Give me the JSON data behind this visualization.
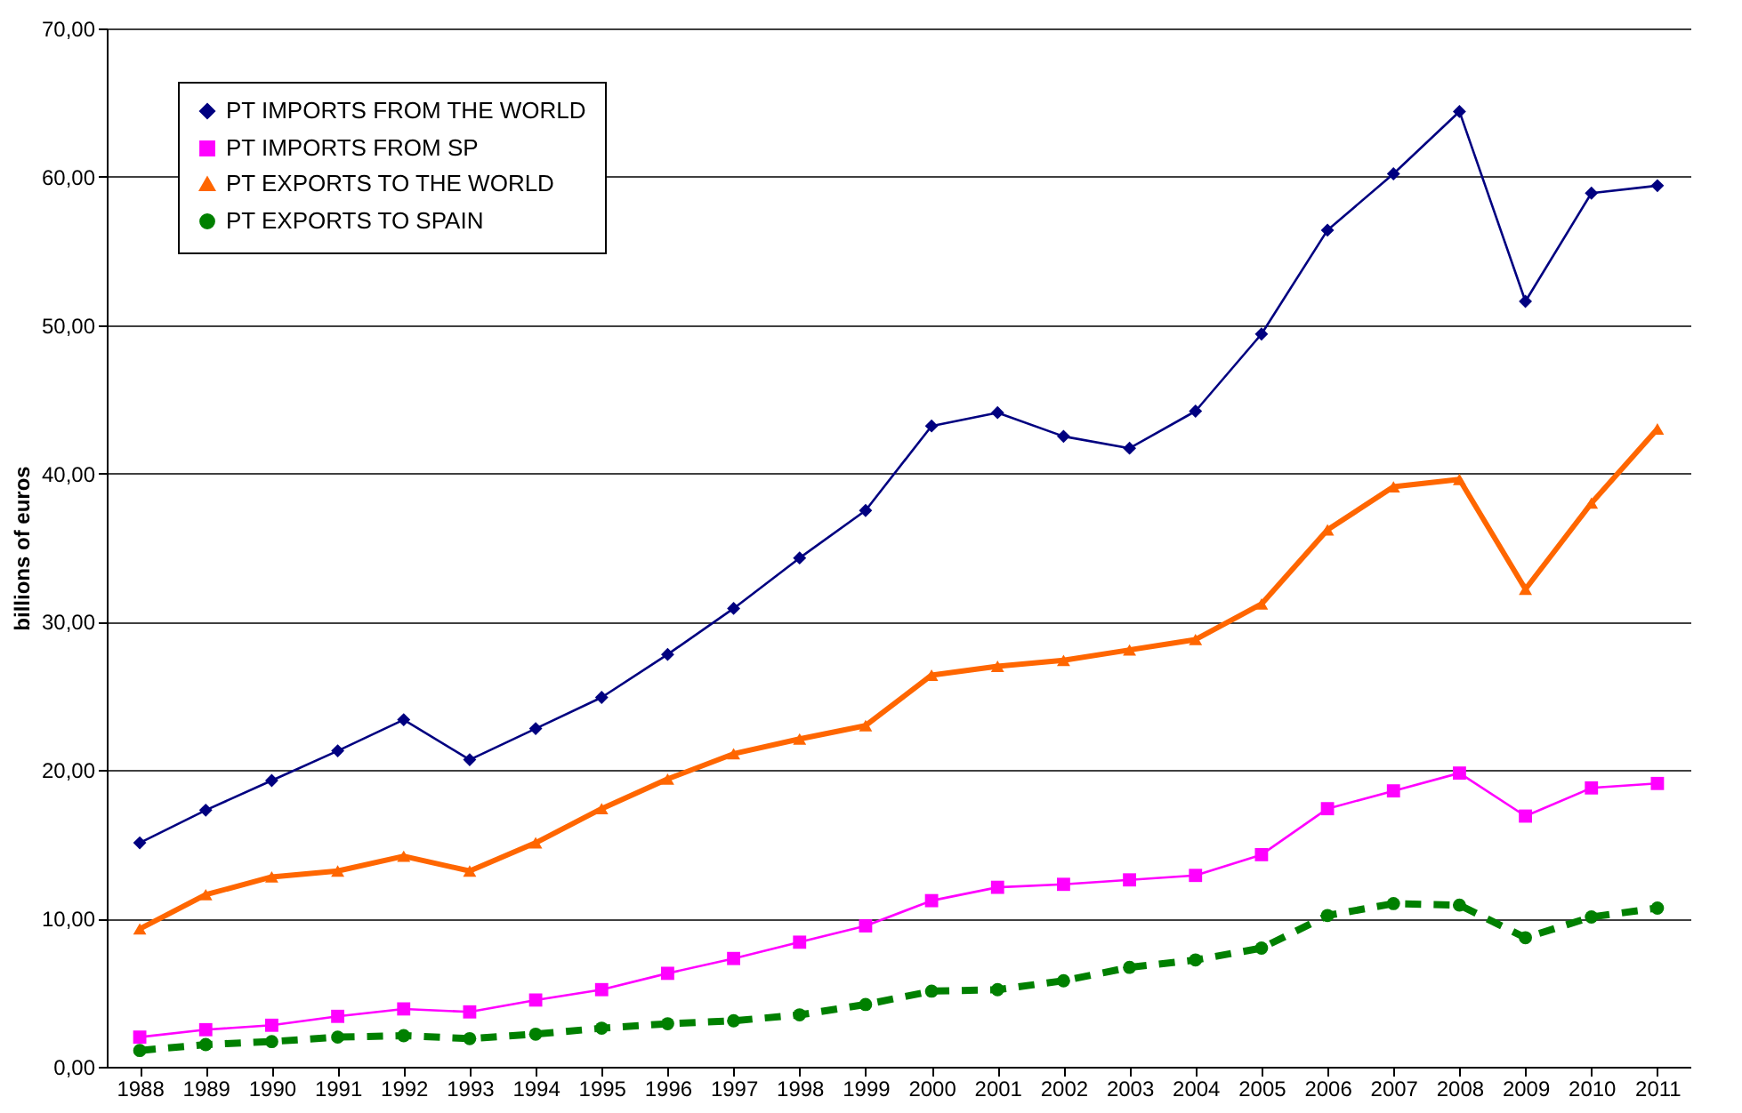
{
  "chart_data": {
    "type": "line",
    "ylabel": "billions of euros",
    "categories": [
      "1988",
      "1989",
      "1990",
      "1991",
      "1992",
      "1993",
      "1994",
      "1995",
      "1996",
      "1997",
      "1998",
      "1999",
      "2000",
      "2001",
      "2002",
      "2003",
      "2004",
      "2005",
      "2006",
      "2007",
      "2008",
      "2009",
      "2010",
      "2011"
    ],
    "series": [
      {
        "name": "PT IMPORTS FROM THE WORLD",
        "color": "#000080",
        "marker": "diamond",
        "line_style": "solid",
        "values": [
          15.1,
          17.3,
          19.3,
          21.3,
          23.4,
          20.7,
          22.8,
          24.9,
          27.8,
          30.9,
          34.3,
          37.5,
          43.2,
          44.1,
          42.5,
          41.7,
          44.2,
          49.4,
          56.4,
          60.2,
          64.4,
          51.6,
          58.9,
          59.4
        ]
      },
      {
        "name": "PT IMPORTS FROM SP",
        "color": "#ff00ff",
        "marker": "square",
        "line_style": "solid",
        "values": [
          2.0,
          2.5,
          2.8,
          3.4,
          3.9,
          3.7,
          4.5,
          5.2,
          6.3,
          7.3,
          8.4,
          9.5,
          11.2,
          12.1,
          12.3,
          12.6,
          12.9,
          14.3,
          17.4,
          18.6,
          19.8,
          16.9,
          18.8,
          19.1
        ]
      },
      {
        "name": "PT EXPORTS TO THE WORLD",
        "color": "#ff6600",
        "marker": "triangle",
        "line_style": "solid",
        "values": [
          9.3,
          11.6,
          12.8,
          13.2,
          14.2,
          13.2,
          15.1,
          17.4,
          19.4,
          21.1,
          22.1,
          23.0,
          26.4,
          27.0,
          27.4,
          28.1,
          28.8,
          31.2,
          36.2,
          39.1,
          39.6,
          32.2,
          38.0,
          43.0
        ]
      },
      {
        "name": "PT EXPORTS TO SPAIN",
        "color": "#008000",
        "marker": "circle",
        "line_style": "dashed",
        "values": [
          1.1,
          1.5,
          1.7,
          2.0,
          2.1,
          1.9,
          2.2,
          2.6,
          2.9,
          3.1,
          3.5,
          4.2,
          5.1,
          5.2,
          5.8,
          6.7,
          7.2,
          8.0,
          10.2,
          11.0,
          10.9,
          8.7,
          10.1,
          10.7
        ]
      }
    ],
    "ylim": [
      0,
      70
    ],
    "yticks": [
      {
        "value": 0,
        "label": "0,00"
      },
      {
        "value": 10,
        "label": "10,00"
      },
      {
        "value": 20,
        "label": "20,00"
      },
      {
        "value": 30,
        "label": "30,00"
      },
      {
        "value": 40,
        "label": "40,00"
      },
      {
        "value": 50,
        "label": "50,00"
      },
      {
        "value": 60,
        "label": "60,00"
      },
      {
        "value": 70,
        "label": "70,00"
      }
    ],
    "grid": "y",
    "legend": "top left"
  }
}
